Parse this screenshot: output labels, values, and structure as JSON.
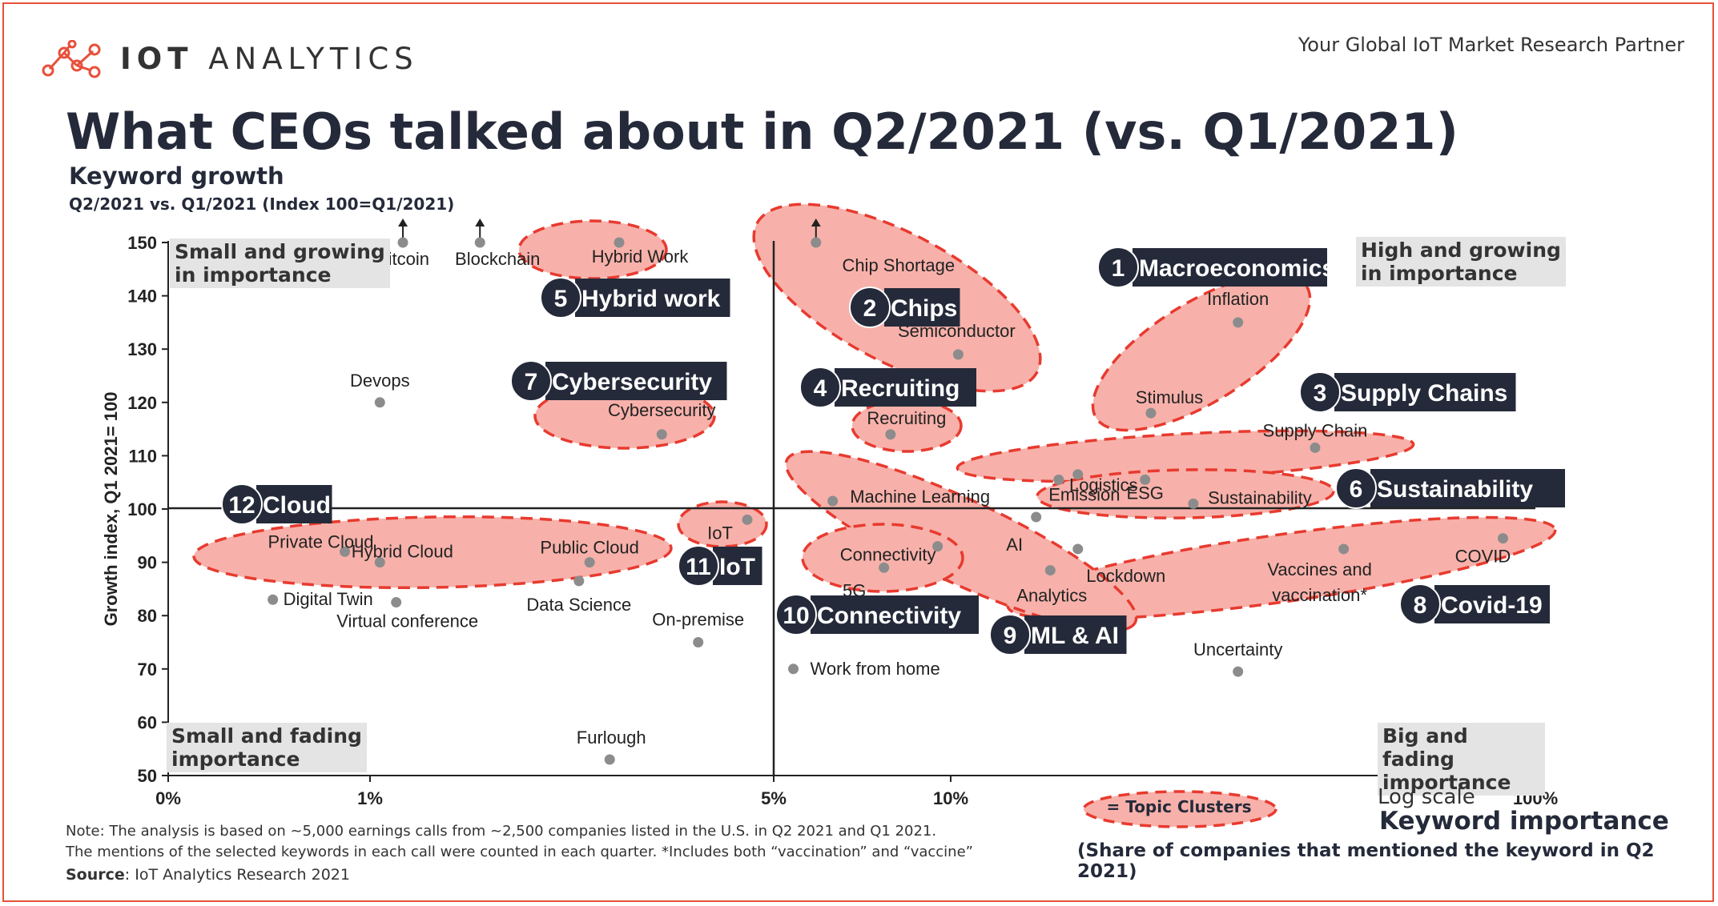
{
  "brand": {
    "logo_bold": "IOT",
    "logo_light": "ANALYTICS",
    "tagline": "Your Global IoT Market Research Partner"
  },
  "colors": {
    "cluster_fill": "#f7b1aa",
    "cluster_stroke": "#e83a2f",
    "badge_bg": "#252a3a",
    "dot": "#8c8c8c",
    "frame": "#e8503a"
  },
  "chart_data": {
    "type": "scatter",
    "title": "What CEOs talked about in Q2/2021 (vs. Q1/2021)",
    "subtitle": "Keyword growth",
    "subtitle2": "Q2/2021 vs. Q1/2021 (Index 100=Q1/2021)",
    "ylabel": "Growth index, Q1 2021= 100",
    "xlabel": "Keyword importance",
    "xlabel_sub": "(Share of companies that mentioned the keyword in Q2 2021)",
    "xscale": "log",
    "xscale_label": "Log scale",
    "x_ticks": [
      {
        "value": 0,
        "label": "0%"
      },
      {
        "value": 1,
        "label": "1%"
      },
      {
        "value": 5,
        "label": "5%"
      },
      {
        "value": 10,
        "label": "10%"
      },
      {
        "value": 100,
        "label": "100%"
      }
    ],
    "ylim": [
      50,
      150
    ],
    "y_ticks": [
      50,
      60,
      70,
      80,
      90,
      100,
      110,
      120,
      130,
      140,
      150
    ],
    "quadrants": {
      "top_left": [
        "Small and growing",
        "in importance"
      ],
      "top_right": [
        "High and growing",
        "in importance"
      ],
      "bottom_left": [
        "Small and fading",
        "importance"
      ],
      "bottom_right": [
        "Big and fading",
        "importance"
      ]
    },
    "points": [
      {
        "label": "Bitcoin",
        "x": 1.14,
        "y": 150,
        "offscale": true
      },
      {
        "label": "Blockchain",
        "x": 1.55,
        "y": 150,
        "offscale": true
      },
      {
        "label": "Hybrid Work",
        "x": 2.7,
        "y": 150
      },
      {
        "label": "Chip Shortage",
        "x": 5.9,
        "y": 150,
        "offscale": true
      },
      {
        "label": "Devops",
        "x": 1.04,
        "y": 120
      },
      {
        "label": "Cybersecurity",
        "x": 3.2,
        "y": 114
      },
      {
        "label": "Semiconductor",
        "x": 10.3,
        "y": 129
      },
      {
        "label": "Recruiting",
        "x": 7.9,
        "y": 114
      },
      {
        "label": "Inflation",
        "x": 31,
        "y": 135
      },
      {
        "label": "Stimulus",
        "x": 22,
        "y": 118
      },
      {
        "label": "Supply Chain",
        "x": 42,
        "y": 111.5
      },
      {
        "label": "Logistics",
        "x": 16.5,
        "y": 106.5
      },
      {
        "label": "Emission",
        "x": 15.3,
        "y": 105.5
      },
      {
        "label": "ESG",
        "x": 21.5,
        "y": 105.5
      },
      {
        "label": "Sustainability",
        "x": 26,
        "y": 101
      },
      {
        "label": "Machine Learning",
        "x": 6.3,
        "y": 101.5
      },
      {
        "label": "AI",
        "x": 14,
        "y": 98.5
      },
      {
        "label": "IoT",
        "x": 4.5,
        "y": 98
      },
      {
        "label": "Connectivity",
        "x": 9.5,
        "y": 93
      },
      {
        "label": "5G",
        "x": 7.7,
        "y": 89
      },
      {
        "label": "Lockdown",
        "x": 16.5,
        "y": 92.5
      },
      {
        "label": "Analytics",
        "x": 14.8,
        "y": 88.5
      },
      {
        "label": "COVID",
        "x": 88,
        "y": 94.5
      },
      {
        "label": "Vaccines and vaccination*",
        "x": 47,
        "y": 92.5
      },
      {
        "label": "Private Cloud",
        "x": 0.75,
        "y": 92
      },
      {
        "label": "Hybrid Cloud",
        "x": 1.04,
        "y": 90
      },
      {
        "label": "Public Cloud",
        "x": 2.4,
        "y": 90
      },
      {
        "label": "Data Science",
        "x": 2.3,
        "y": 86.5
      },
      {
        "label": "Digital Twin",
        "x": 0.33,
        "y": 83
      },
      {
        "label": "Virtual conference",
        "x": 1.11,
        "y": 82.5
      },
      {
        "label": "On-premise",
        "x": 3.7,
        "y": 75
      },
      {
        "label": "Work from home",
        "x": 5.4,
        "y": 70
      },
      {
        "label": "Uncertainty",
        "x": 31,
        "y": 69.5
      },
      {
        "label": "Furlough",
        "x": 2.6,
        "y": 53
      }
    ],
    "clusters": [
      {
        "num": "1",
        "name": "Macroeconomics"
      },
      {
        "num": "2",
        "name": "Chips"
      },
      {
        "num": "3",
        "name": "Supply Chains"
      },
      {
        "num": "4",
        "name": "Recruiting"
      },
      {
        "num": "5",
        "name": "Hybrid work"
      },
      {
        "num": "6",
        "name": "Sustainability"
      },
      {
        "num": "7",
        "name": "Cybersecurity"
      },
      {
        "num": "8",
        "name": "Covid-19"
      },
      {
        "num": "9",
        "name": "ML & AI"
      },
      {
        "num": "10",
        "name": "Connectivity"
      },
      {
        "num": "11",
        "name": "IoT"
      },
      {
        "num": "12",
        "name": "Cloud"
      }
    ],
    "legend": "= Topic Clusters"
  },
  "notes": {
    "line1": "Note: The analysis is based on ~5,000 earnings calls from ~2,500 companies listed in the U.S. in  Q2 2021 and Q1 2021.",
    "line2": "The mentions of the selected keywords in each call were counted in each quarter. *Includes both  “vaccination” and “vaccine”",
    "source_label": "Source",
    "source_text": ": IoT Analytics Research 2021"
  }
}
